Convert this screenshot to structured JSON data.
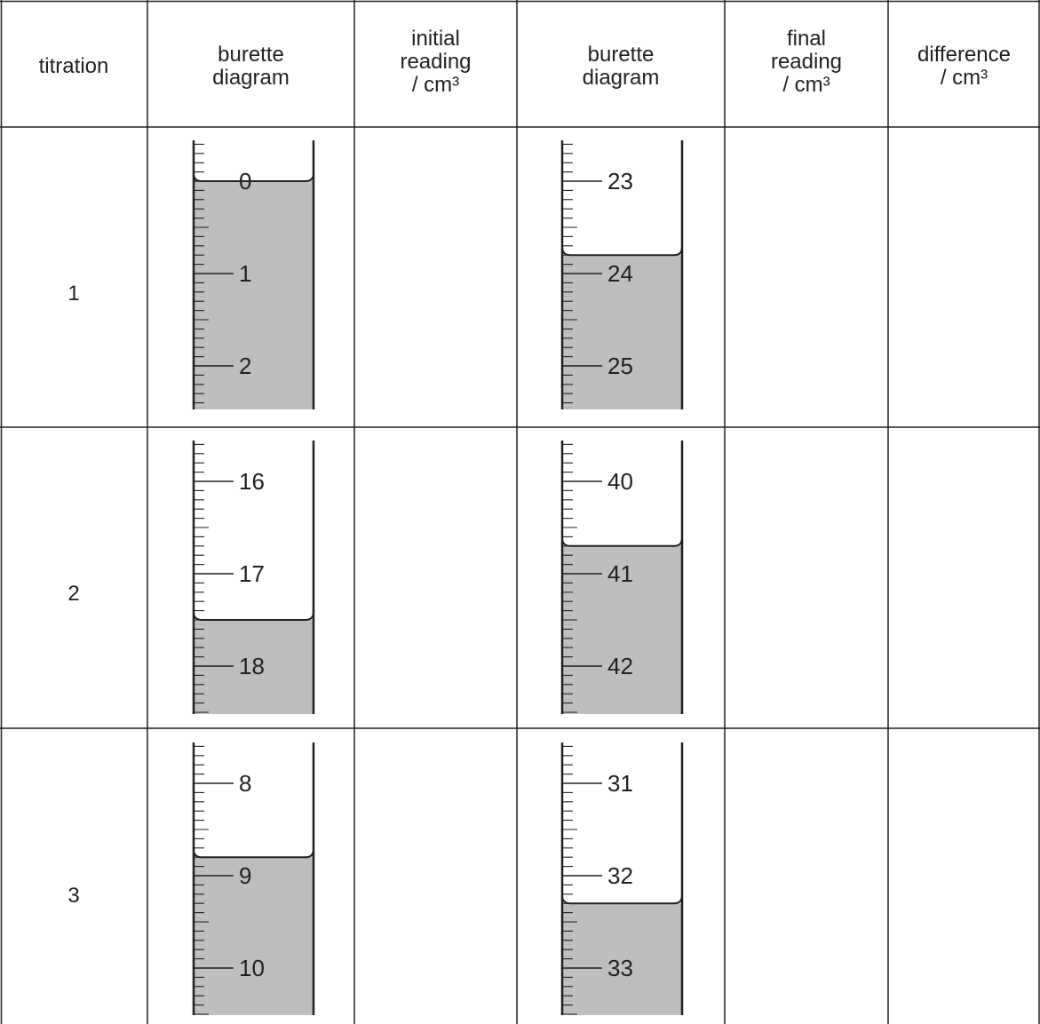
{
  "table": {
    "headers": [
      {
        "key": "titration",
        "lines": [
          "titration"
        ],
        "unit": ""
      },
      {
        "key": "burette-diagram-initial",
        "lines": [
          "burette",
          "diagram"
        ],
        "unit": ""
      },
      {
        "key": "initial-reading",
        "lines": [
          "initial",
          "reading"
        ],
        "unit": "/ cm³"
      },
      {
        "key": "burette-diagram-final",
        "lines": [
          "burette",
          "diagram"
        ],
        "unit": ""
      },
      {
        "key": "final-reading",
        "lines": [
          "final",
          "reading"
        ],
        "unit": "/ cm³"
      },
      {
        "key": "difference",
        "lines": [
          "difference"
        ],
        "unit": "/ cm³"
      }
    ],
    "rows": [
      {
        "titration": "1",
        "initial_burette": {
          "labels": [
            "0",
            "1",
            "2"
          ],
          "first_label": 0,
          "level": 0.0
        },
        "initial_reading": "",
        "final_burette": {
          "labels": [
            "23",
            "24",
            "25"
          ],
          "first_label": 23,
          "level": 23.8
        },
        "final_reading": "",
        "difference": ""
      },
      {
        "titration": "2",
        "initial_burette": {
          "labels": [
            "16",
            "17",
            "18"
          ],
          "first_label": 16,
          "level": 17.5
        },
        "initial_reading": "",
        "final_burette": {
          "labels": [
            "40",
            "41",
            "42"
          ],
          "first_label": 40,
          "level": 40.7
        },
        "final_reading": "",
        "difference": ""
      },
      {
        "titration": "3",
        "initial_burette": {
          "labels": [
            "8",
            "9",
            "10"
          ],
          "first_label": 8,
          "level": 8.8
        },
        "initial_reading": "",
        "final_burette": {
          "labels": [
            "31",
            "32",
            "33"
          ],
          "first_label": 31,
          "level": 32.3
        },
        "final_reading": "",
        "difference": ""
      }
    ]
  },
  "colors": {
    "liquid": "#bcbec0",
    "line": "#231f20",
    "background": "#ffffff"
  }
}
